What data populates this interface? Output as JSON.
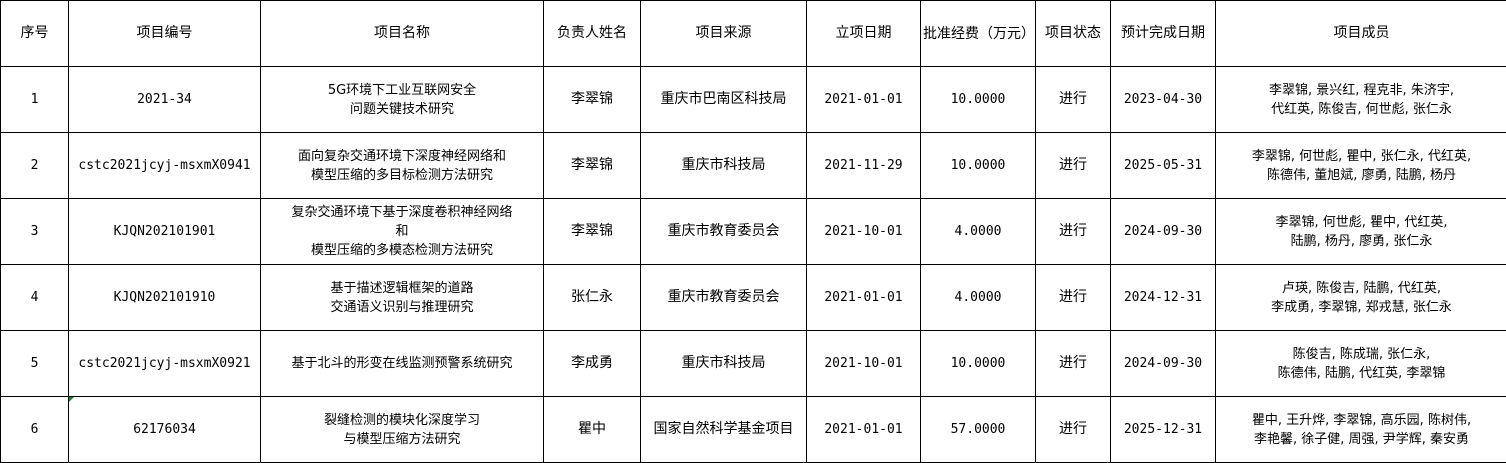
{
  "headers": [
    "序号",
    "项目编号",
    "项目名称",
    "负责人姓名",
    "项目来源",
    "立项日期",
    "批准经费（万元）",
    "项目状态",
    "预计完成日期",
    "项目成员"
  ],
  "rows": [
    {
      "no": "1",
      "code": "2021-34",
      "name": "5G环境下工业互联网安全\n问题关键技术研究",
      "leader": "李翠锦",
      "source": "重庆市巴南区科技局",
      "start": "2021-01-01",
      "funds": "10.0000",
      "status": "进行",
      "end": "2023-04-30",
      "members": "李翠锦, 景兴红, 程克非, 朱济宇,\n代红英, 陈俊吉, 何世彪, 张仁永"
    },
    {
      "no": "2",
      "code": "cstc2021jcyj-msxmX0941",
      "name": "面向复杂交通环境下深度神经网络和\n模型压缩的多目标检测方法研究",
      "leader": "李翠锦",
      "source": "重庆市科技局",
      "start": "2021-11-29",
      "funds": "10.0000",
      "status": "进行",
      "end": "2025-05-31",
      "members": "李翠锦, 何世彪, 瞿中, 张仁永, 代红英,\n陈德伟, 董旭斌, 廖勇, 陆鹏, 杨丹"
    },
    {
      "no": "3",
      "code": "KJQN202101901",
      "name": "复杂交通环境下基于深度卷积神经网络\n和\n模型压缩的多模态检测方法研究",
      "leader": "李翠锦",
      "source": "重庆市教育委员会",
      "start": "2021-10-01",
      "funds": "4.0000",
      "status": "进行",
      "end": "2024-09-30",
      "members": "李翠锦, 何世彪, 瞿中, 代红英,\n陆鹏, 杨丹, 廖勇, 张仁永"
    },
    {
      "no": "4",
      "code": "KJQN202101910",
      "name": "基于描述逻辑框架的道路\n交通语义识别与推理研究",
      "leader": "张仁永",
      "source": "重庆市教育委员会",
      "start": "2021-01-01",
      "funds": "4.0000",
      "status": "进行",
      "end": "2024-12-31",
      "members": "卢瑛, 陈俊吉, 陆鹏, 代红英,\n李成勇, 李翠锦, 郑戎慧, 张仁永"
    },
    {
      "no": "5",
      "code": "cstc2021jcyj-msxmX0921",
      "name": "基于北斗的形变在线监测预警系统研究",
      "leader": "李成勇",
      "source": "重庆市科技局",
      "start": "2021-10-01",
      "funds": "10.0000",
      "status": "进行",
      "end": "2024-09-30",
      "members": "陈俊吉, 陈成瑞, 张仁永,\n陈德伟, 陆鹏, 代红英, 李翠锦"
    },
    {
      "no": "6",
      "code": "62176034",
      "name": "裂缝检测的模块化深度学习\n与模型压缩方法研究",
      "leader": "瞿中",
      "source": "国家自然科学基金项目",
      "start": "2021-01-01",
      "funds": "57.0000",
      "status": "进行",
      "end": "2025-12-31",
      "members": "瞿中, 王升烨, 李翠锦, 高乐园, 陈树伟,\n李艳馨, 徐子健, 周强, 尹学辉, 秦安勇"
    }
  ]
}
